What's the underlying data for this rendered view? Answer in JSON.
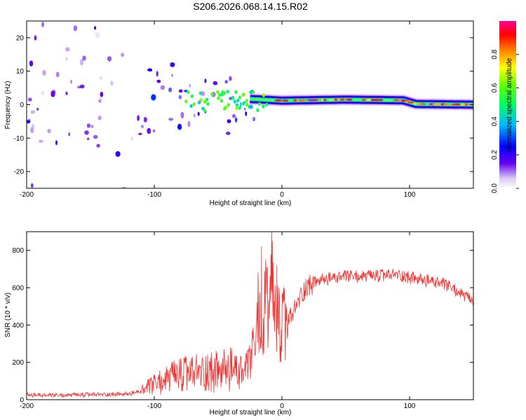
{
  "title": "S206.2026.068.14.15.R02",
  "chart_data": [
    {
      "type": "heatmap",
      "xlabel": "Height of straight line (km)",
      "ylabel": "Frequency (Hz)",
      "xlim": [
        -200,
        150
      ],
      "ylim": [
        -25,
        25
      ],
      "xticks": [
        -200,
        -100,
        0,
        100
      ],
      "yticks": [
        -20,
        -10,
        0,
        10,
        20
      ],
      "colorbar": {
        "label": "Normalized spectral amplitude",
        "range": [
          0,
          1
        ],
        "ticks": [
          0.0,
          0.2,
          0.4,
          0.6,
          0.8
        ]
      },
      "ridge": [
        {
          "x": -30,
          "freq": 1.8
        },
        {
          "x": 0,
          "freq": 1.2
        },
        {
          "x": 50,
          "freq": 1.5
        },
        {
          "x": 95,
          "freq": 1.3
        },
        {
          "x": 105,
          "freq": 0.2
        },
        {
          "x": 150,
          "freq": 0.0
        }
      ]
    },
    {
      "type": "line",
      "xlabel": "Height of straight line (km)",
      "ylabel": "SNR (10 * v/v)",
      "xlim": [
        -200,
        150
      ],
      "ylim": [
        0,
        900
      ],
      "xticks": [
        -200,
        -100,
        0,
        100
      ],
      "yticks": [
        0,
        200,
        400,
        600,
        800
      ],
      "color": "#ee3333",
      "series": [
        {
          "name": "SNR",
          "x": [
            -200,
            -180,
            -160,
            -140,
            -120,
            -110,
            -100,
            -90,
            -80,
            -70,
            -60,
            -50,
            -40,
            -30,
            -25,
            -20,
            -18,
            -15,
            -12,
            -10,
            -8,
            -5,
            0,
            5,
            10,
            15,
            20,
            30,
            40,
            50,
            60,
            70,
            80,
            90,
            100,
            110,
            120,
            130,
            140,
            150
          ],
          "values": [
            25,
            22,
            25,
            28,
            30,
            45,
            80,
            110,
            130,
            140,
            150,
            150,
            160,
            140,
            200,
            330,
            520,
            280,
            650,
            350,
            580,
            420,
            380,
            420,
            480,
            560,
            610,
            640,
            650,
            660,
            660,
            660,
            665,
            670,
            655,
            640,
            630,
            610,
            570,
            520
          ]
        }
      ],
      "peaks": [
        {
          "x": -16,
          "value": 820
        },
        {
          "x": -8,
          "value": 900
        },
        {
          "x": -4,
          "value": 720
        }
      ]
    }
  ]
}
